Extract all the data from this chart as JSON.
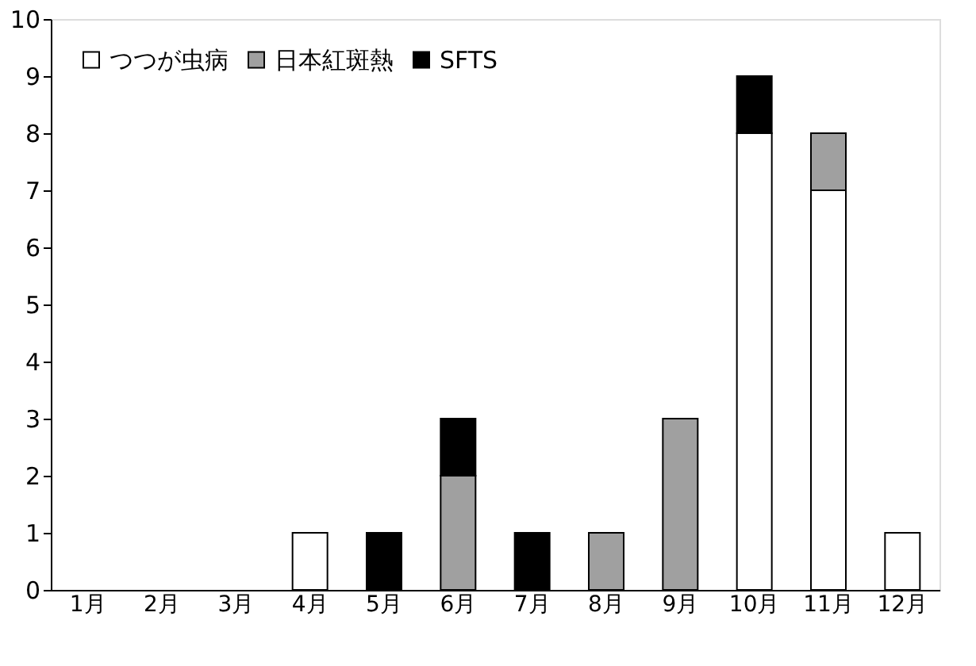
{
  "chart_data": {
    "type": "bar",
    "stacked": true,
    "categories": [
      "1月",
      "2月",
      "3月",
      "4月",
      "5月",
      "6月",
      "7月",
      "8月",
      "9月",
      "10月",
      "11月",
      "12月"
    ],
    "series": [
      {
        "name": "つつが虫病",
        "color": "#ffffff",
        "values": [
          null,
          null,
          null,
          1,
          null,
          null,
          null,
          null,
          null,
          8,
          7,
          1
        ]
      },
      {
        "name": "日本紅斑熱",
        "color": "#a0a0a0",
        "values": [
          null,
          null,
          null,
          null,
          null,
          2,
          null,
          1,
          3,
          null,
          1,
          null
        ]
      },
      {
        "name": "SFTS",
        "color": "#000000",
        "values": [
          null,
          null,
          null,
          null,
          1,
          1,
          1,
          null,
          null,
          1,
          null,
          null
        ]
      }
    ],
    "ylim": [
      0,
      10
    ],
    "yticks": [
      0,
      1,
      2,
      3,
      4,
      5,
      6,
      7,
      8,
      9,
      10
    ],
    "grid": false,
    "legend": "top left"
  }
}
